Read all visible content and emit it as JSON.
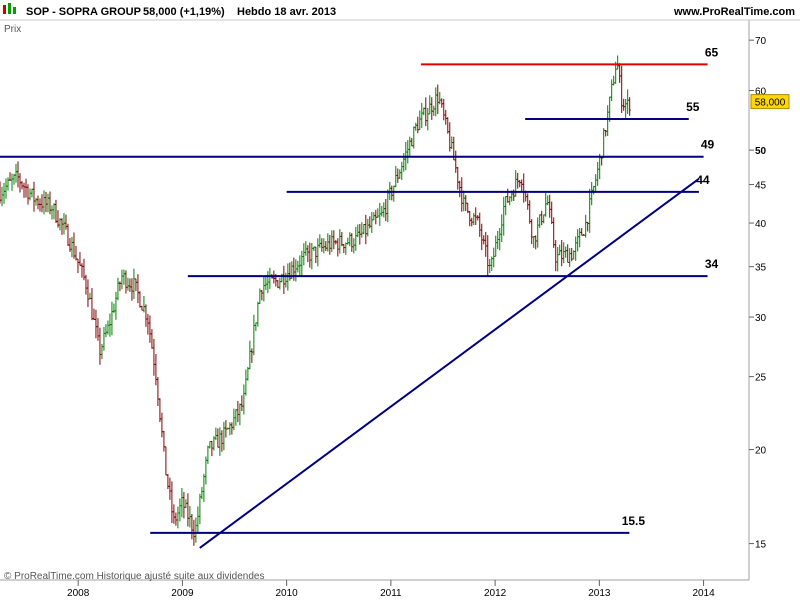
{
  "header": {
    "symbol": "SOP - SOPRA GROUP",
    "price_change": "58,000 (+1,19%)",
    "period_date": "Hebdo  18 avr. 2013",
    "site": "www.ProRealTime.com"
  },
  "axis_name": "Prix",
  "footer": "© ProRealTime.com  Historique ajusté suite aux dividendes",
  "current_price_label": "58,000",
  "colors": {
    "up": "#008000",
    "down": "#800000",
    "support_line": "#000080",
    "resistance_line": "#e00000",
    "price_badge": "#ffd700"
  },
  "chart_data": {
    "type": "candlestick",
    "y_scale": "log",
    "ylim": [
      13.5,
      74
    ],
    "xlim": [
      "2007-04",
      "2014-06"
    ],
    "y_ticks": [
      15,
      20,
      25,
      30,
      35,
      40,
      45,
      50,
      60,
      70
    ],
    "y_tick_labels": [
      "15",
      "20",
      "25",
      "30",
      "35",
      "40",
      "45",
      "50",
      "60",
      "70"
    ],
    "y_bold_ticks": [
      50
    ],
    "x_tick_labels": [
      "2008",
      "2009",
      "2010",
      "2011",
      "2012",
      "2013",
      "2014"
    ],
    "x_ticks": [
      "2008-01",
      "2009-01",
      "2010-01",
      "2011-01",
      "2012-01",
      "2013-01",
      "2014-01"
    ],
    "current_price": 58.0,
    "price_path": [
      [
        "2007-04-01",
        44
      ],
      [
        "2007-06-01",
        46
      ],
      [
        "2007-08-01",
        43
      ],
      [
        "2007-10-01",
        42
      ],
      [
        "2007-12-01",
        38
      ],
      [
        "2008-02-01",
        33
      ],
      [
        "2008-03-15",
        27
      ],
      [
        "2008-04-15",
        29
      ],
      [
        "2008-06-01",
        34
      ],
      [
        "2008-07-15",
        33
      ],
      [
        "2008-09-01",
        30
      ],
      [
        "2008-10-01",
        25
      ],
      [
        "2008-11-01",
        19
      ],
      [
        "2008-12-01",
        16
      ],
      [
        "2009-01-01",
        17
      ],
      [
        "2009-02-15",
        15.5
      ],
      [
        "2009-04-01",
        20
      ],
      [
        "2009-06-01",
        21
      ],
      [
        "2009-08-01",
        23
      ],
      [
        "2009-10-01",
        33
      ],
      [
        "2009-12-01",
        33.5
      ],
      [
        "2010-03-01",
        36
      ],
      [
        "2010-06-01",
        37.5
      ],
      [
        "2010-09-01",
        38
      ],
      [
        "2010-12-01",
        41
      ],
      [
        "2011-02-01",
        47
      ],
      [
        "2011-04-01",
        54
      ],
      [
        "2011-06-15",
        59
      ],
      [
        "2011-08-01",
        50
      ],
      [
        "2011-09-15",
        42
      ],
      [
        "2011-11-01",
        40
      ],
      [
        "2011-12-15",
        34.5
      ],
      [
        "2012-02-01",
        42
      ],
      [
        "2012-04-01",
        46.5
      ],
      [
        "2012-05-15",
        38
      ],
      [
        "2012-07-01",
        43
      ],
      [
        "2012-08-01",
        36
      ],
      [
        "2012-10-01",
        36.5
      ],
      [
        "2012-11-15",
        40
      ],
      [
        "2013-01-01",
        48
      ],
      [
        "2013-02-01",
        56
      ],
      [
        "2013-03-01",
        66
      ],
      [
        "2013-03-20",
        58
      ],
      [
        "2013-04-10",
        57.3
      ],
      [
        "2013-04-18",
        58
      ]
    ],
    "levels": [
      {
        "value": 65,
        "label": "65",
        "color": "#e00000",
        "from": "2011-04-15",
        "to": "2014-01-15"
      },
      {
        "value": 55,
        "label": "55",
        "color": "#000080",
        "from": "2012-04-15",
        "to": "2013-11-10"
      },
      {
        "value": 49,
        "label": "49",
        "color": "#000080",
        "from": "2007-04-01",
        "to": "2014-01-01"
      },
      {
        "value": 44,
        "label": "44",
        "color": "#000080",
        "from": "2010-01-01",
        "to": "2013-12-15"
      },
      {
        "value": 34,
        "label": "34",
        "color": "#000080",
        "from": "2009-01-20",
        "to": "2014-01-15"
      },
      {
        "value": 15.5,
        "label": "15.5",
        "color": "#000080",
        "from": "2008-09-10",
        "to": "2013-04-15"
      }
    ],
    "trendline": {
      "from": [
        "2009-03-01",
        14.8
      ],
      "to": [
        "2013-12-15",
        45.8
      ],
      "color": "#000080"
    }
  }
}
